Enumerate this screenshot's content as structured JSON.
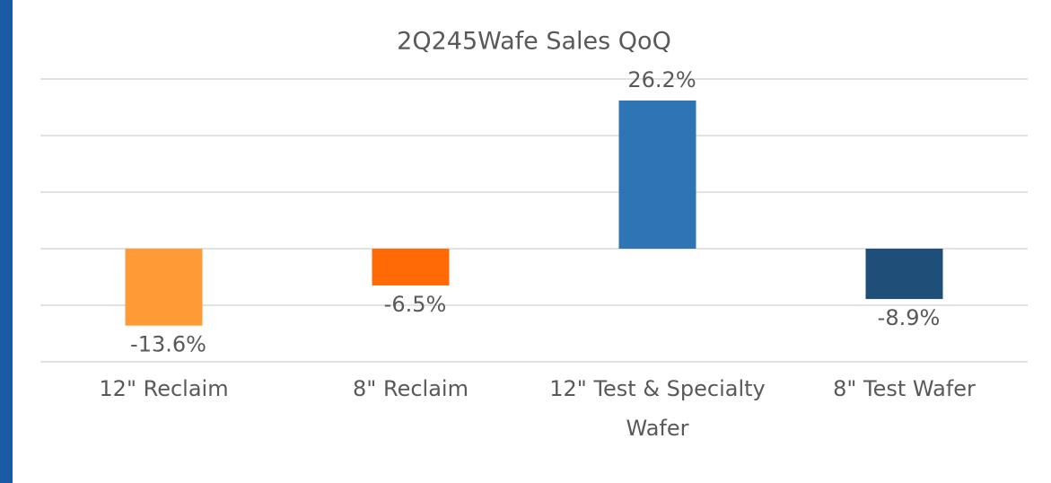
{
  "chart_data": {
    "type": "bar",
    "title": "2Q245Wafe Sales QoQ",
    "categories": [
      "12\" Reclaim",
      "8\" Reclaim",
      "12\" Test & Specialty Wafer",
      "8\" Test Wafer"
    ],
    "values": [
      -13.6,
      -6.5,
      26.2,
      -8.9
    ],
    "value_labels": [
      "-13.6%",
      "-6.5%",
      "26.2%",
      "-8.9%"
    ],
    "colors": [
      "#ff9b37",
      "#ff6a07",
      "#2e75b6",
      "#1f4e79"
    ],
    "ylim": [
      -20,
      30
    ],
    "yticks": [
      -20,
      -10,
      0,
      10,
      20,
      30
    ],
    "grid": true
  }
}
